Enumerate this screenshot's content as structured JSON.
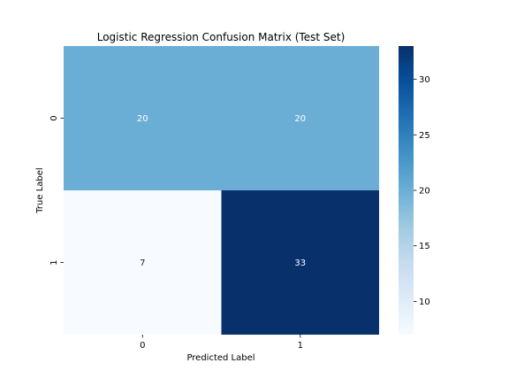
{
  "chart_data": {
    "type": "heatmap",
    "title": "Logistic Regression Confusion Matrix (Test Set)",
    "xlabel": "Predicted Label",
    "ylabel": "True Label",
    "x_categories": [
      "0",
      "1"
    ],
    "y_categories": [
      "0",
      "1"
    ],
    "values": [
      [
        20,
        20
      ],
      [
        7,
        33
      ]
    ],
    "colormap": "Blues",
    "color_range": [
      7,
      33
    ],
    "colorbar_ticks": [
      "10",
      "15",
      "20",
      "25",
      "30"
    ],
    "colorbar_tick_values": [
      10,
      15,
      20,
      25,
      30
    ],
    "cell_colors": {
      "20": "#6aaed6",
      "7": "#f7fbff",
      "33": "#08306b"
    },
    "annotation_colors": {
      "light_cell_text": "#262626",
      "dark_cell_text": "#ffffff"
    }
  }
}
